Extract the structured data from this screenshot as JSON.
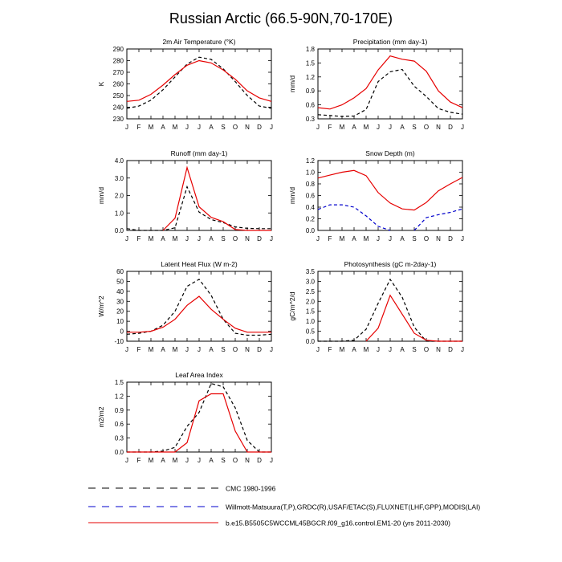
{
  "title": "Russian Arctic (66.5-90N,70-170E)",
  "months": [
    "J",
    "F",
    "M",
    "A",
    "M",
    "J",
    "J",
    "A",
    "S",
    "O",
    "N",
    "D",
    "J"
  ],
  "styles": {
    "cmc": {
      "color": "#000000",
      "dash": "4,3"
    },
    "obs": {
      "color": "#0000cc",
      "dash": "4,3"
    },
    "model": {
      "color": "#e60000",
      "dash": ""
    }
  },
  "legend": [
    {
      "key": "cmc",
      "label": "CMC 1980-1996"
    },
    {
      "key": "obs",
      "label": "Willmott-Matsuura(T,P),GRDC(R),USAF/ETAC(S),FLUXNET(LHF,GPP),MODIS(LAI)"
    },
    {
      "key": "model",
      "label": "b.e15.B5505C5WCCML45BGCR.f09_g16.control.EM1-20 (yrs 2011-2030)"
    }
  ],
  "chart_data": [
    {
      "type": "line",
      "title": "2m Air Temperature (°K)",
      "ylabel": "K",
      "ylim": [
        230,
        290
      ],
      "yticks": [
        230,
        240,
        250,
        260,
        270,
        280,
        290
      ],
      "ytick_labels": [
        "230",
        "240",
        "250",
        "260",
        "270",
        "280",
        "290"
      ],
      "series": [
        {
          "style": "cmc",
          "values": [
            239,
            241,
            246,
            255,
            266,
            277,
            283,
            281,
            273,
            262,
            250,
            241,
            239
          ]
        },
        {
          "style": "model",
          "values": [
            245,
            246,
            251,
            259,
            268,
            276,
            280,
            278,
            272,
            264,
            254,
            248,
            245
          ]
        }
      ]
    },
    {
      "type": "line",
      "title": "Precipitation (mm day-1)",
      "ylabel": "mm/d",
      "ylim": [
        0.3,
        1.8
      ],
      "yticks": [
        0.3,
        0.6,
        0.9,
        1.2,
        1.5,
        1.8
      ],
      "ytick_labels": [
        "0.3",
        "0.6",
        "0.9",
        "1.2",
        "1.5",
        "1.8"
      ],
      "series": [
        {
          "style": "cmc",
          "values": [
            0.39,
            0.37,
            0.35,
            0.36,
            0.5,
            1.1,
            1.31,
            1.36,
            1.0,
            0.78,
            0.52,
            0.44,
            0.4
          ]
        },
        {
          "style": "model",
          "values": [
            0.54,
            0.51,
            0.6,
            0.75,
            0.95,
            1.35,
            1.65,
            1.58,
            1.54,
            1.32,
            0.9,
            0.66,
            0.54
          ]
        }
      ]
    },
    {
      "type": "line",
      "title": "Runoff (mm day-1)",
      "ylabel": "mm/d",
      "ylim": [
        0,
        4
      ],
      "yticks": [
        0,
        1,
        2,
        3,
        4
      ],
      "ytick_labels": [
        "0.0",
        "1.0",
        "2.0",
        "3.0",
        "4.0"
      ],
      "series": [
        {
          "style": "cmc",
          "values": [
            0.1,
            0.0,
            0.0,
            0.0,
            0.15,
            2.5,
            1.05,
            0.62,
            0.45,
            0.2,
            0.12,
            0.1,
            0.1
          ]
        },
        {
          "style": "model",
          "values": [
            null,
            null,
            null,
            0.0,
            0.7,
            3.6,
            1.35,
            0.75,
            0.5,
            0.05,
            0.0,
            0.0,
            0.0
          ]
        }
      ]
    },
    {
      "type": "line",
      "title": "Snow Depth (m)",
      "ylabel": "mm/d",
      "ylim": [
        0,
        1.2
      ],
      "yticks": [
        0,
        0.2,
        0.4,
        0.6,
        0.8,
        1.0,
        1.2
      ],
      "ytick_labels": [
        "0.0",
        "0.2",
        "0.4",
        "0.6",
        "0.8",
        "1.0",
        "1.2"
      ],
      "series": [
        {
          "style": "obs",
          "values": [
            0.36,
            0.44,
            0.44,
            0.4,
            0.25,
            0.07,
            0.0,
            null,
            0.0,
            0.22,
            0.27,
            0.31,
            0.37
          ]
        },
        {
          "style": "model",
          "values": [
            0.9,
            0.95,
            1.0,
            1.03,
            0.94,
            0.65,
            0.47,
            0.37,
            0.35,
            0.48,
            0.68,
            0.8,
            0.91
          ]
        }
      ]
    },
    {
      "type": "line",
      "title": "Latent Heat Flux (W m-2)",
      "ylabel": "W/m^2",
      "ylim": [
        -10,
        60
      ],
      "yticks": [
        -10,
        0,
        10,
        20,
        30,
        40,
        50,
        60
      ],
      "ytick_labels": [
        "-10",
        "0",
        "10",
        "20",
        "30",
        "40",
        "50",
        "60"
      ],
      "series": [
        {
          "style": "cmc",
          "values": [
            -3,
            -2,
            0,
            6,
            20,
            45,
            52,
            36,
            12,
            -2,
            -4,
            -4,
            -3
          ]
        },
        {
          "style": "model",
          "values": [
            -1,
            -1,
            0,
            4,
            12,
            26,
            35,
            22,
            12,
            3,
            -1,
            -1,
            -1
          ]
        }
      ]
    },
    {
      "type": "line",
      "title": "Photosynthesis (gC m-2day-1)",
      "ylabel": "gC/m^2/d",
      "ylim": [
        0,
        3.5
      ],
      "yticks": [
        0,
        0.5,
        1.0,
        1.5,
        2.0,
        2.5,
        3.0,
        3.5
      ],
      "ytick_labels": [
        "0.0",
        "0.5",
        "1.0",
        "1.5",
        "2.0",
        "2.5",
        "3.0",
        "3.5"
      ],
      "series": [
        {
          "style": "cmc",
          "values": [
            0,
            0,
            0,
            0.05,
            0.6,
            1.9,
            3.1,
            2.2,
            0.7,
            0,
            0,
            0,
            0
          ]
        },
        {
          "style": "model",
          "values": [
            null,
            null,
            null,
            null,
            0.0,
            0.65,
            2.3,
            1.35,
            0.4,
            0.05,
            0,
            0,
            0
          ]
        }
      ]
    },
    {
      "type": "line",
      "title": "Leaf Area Index",
      "ylabel": "m2/m2",
      "ylim": [
        0,
        1.5
      ],
      "yticks": [
        0,
        0.3,
        0.6,
        0.9,
        1.2,
        1.5
      ],
      "ytick_labels": [
        "0.0",
        "0.3",
        "0.6",
        "0.9",
        "1.2",
        "1.5"
      ],
      "series": [
        {
          "style": "cmc",
          "values": [
            0,
            0,
            0,
            0.02,
            0.1,
            0.55,
            0.85,
            1.47,
            1.4,
            0.95,
            0.25,
            0,
            0
          ]
        },
        {
          "style": "model",
          "values": [
            0,
            0,
            0,
            0,
            0,
            0.2,
            1.1,
            1.25,
            1.25,
            0.45,
            0,
            0,
            0
          ]
        }
      ]
    }
  ]
}
